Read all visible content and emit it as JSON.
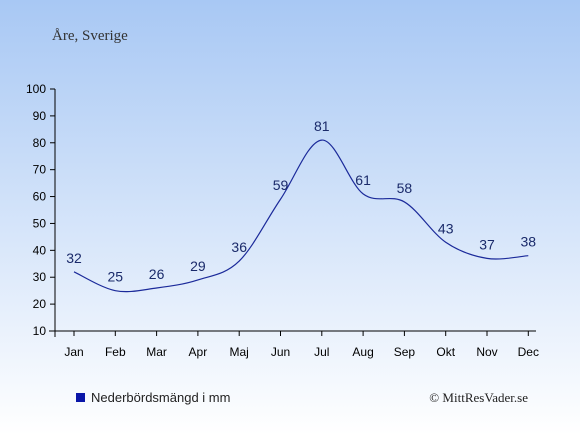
{
  "title": "Åre, Sverige",
  "legend_label": "Nederbördsmängd i mm",
  "copyright": "© MittResVader.se",
  "colors": {
    "line": "#1b2a9a",
    "swatch": "#0a16a8",
    "label": "#1a2a6a",
    "bg_top": "#a8c8f4",
    "bg_bottom": "#ffffff"
  },
  "chart_data": {
    "type": "line",
    "categories": [
      "Jan",
      "Feb",
      "Mar",
      "Apr",
      "Maj",
      "Jun",
      "Jul",
      "Aug",
      "Sep",
      "Okt",
      "Nov",
      "Dec"
    ],
    "series": [
      {
        "name": "Nederbördsmängd i mm",
        "values": [
          32,
          25,
          26,
          29,
          36,
          59,
          81,
          61,
          58,
          43,
          37,
          38
        ]
      }
    ],
    "ylim": [
      10,
      100
    ],
    "yticks": [
      10,
      20,
      30,
      40,
      50,
      60,
      70,
      80,
      90,
      100
    ],
    "grid": false,
    "data_labels": true,
    "legend_position": "bottom-left"
  }
}
